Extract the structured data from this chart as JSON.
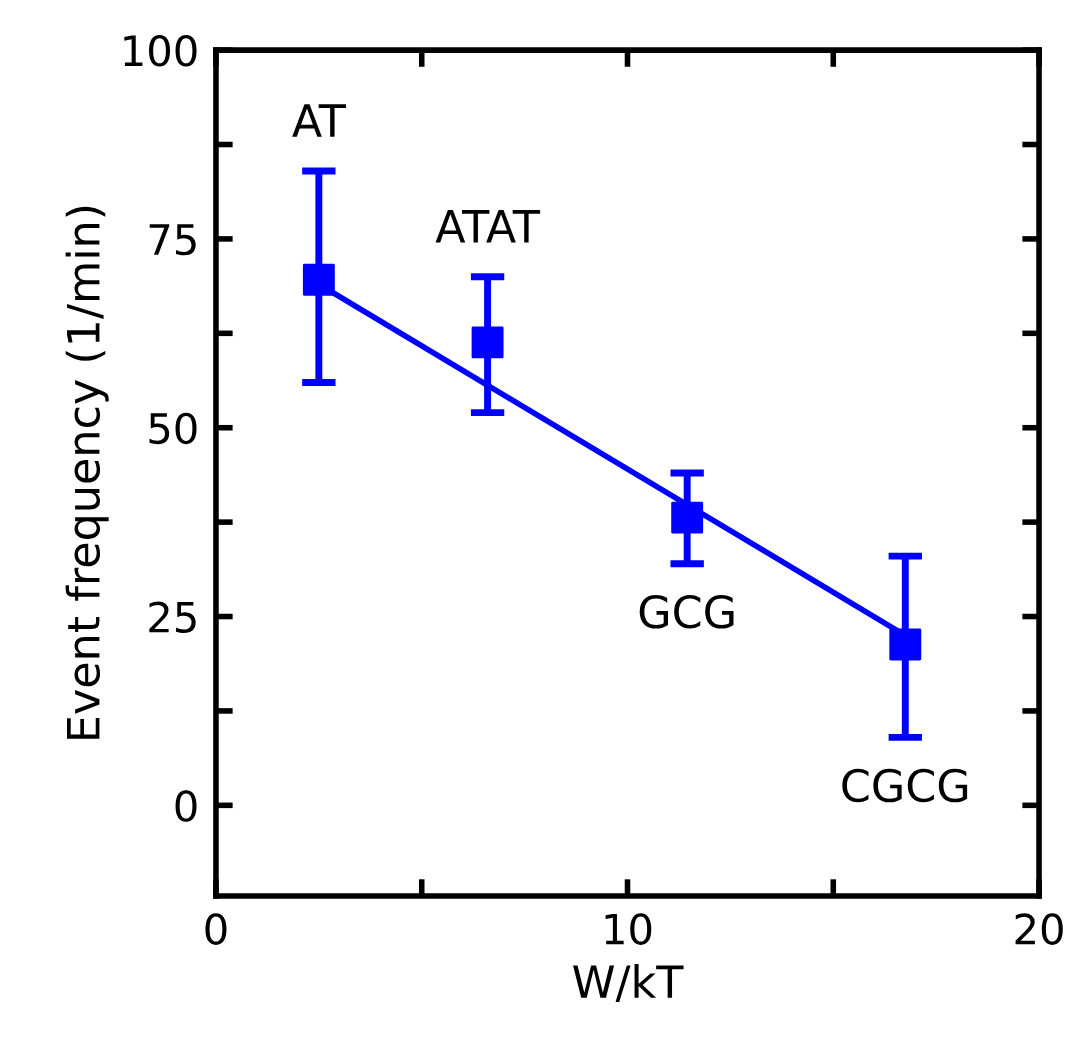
{
  "chart_data": {
    "type": "scatter",
    "xlabel": "W/kT",
    "ylabel": "Event frequency (1/min)",
    "xlim": [
      0,
      20
    ],
    "ylim": [
      -12,
      100
    ],
    "xticks": [
      0,
      {
        "value": 5,
        "label": null
      },
      10,
      {
        "value": 15,
        "label": null
      },
      20
    ],
    "yticks": [
      0,
      {
        "value": 12.5,
        "label": null
      },
      25,
      {
        "value": 37.5,
        "label": null
      },
      50,
      {
        "value": 62.5,
        "label": null
      },
      75,
      {
        "value": 87.5,
        "label": null
      },
      100
    ],
    "grid": false,
    "series": [
      {
        "color": "#0000ff",
        "marker": "square",
        "x": [
          2.5,
          6.6,
          11.45,
          16.75
        ],
        "values": [
          69.6,
          61.3,
          38.1,
          21.3
        ],
        "errors": [
          [
            56,
            84
          ],
          [
            52,
            70
          ],
          [
            32,
            44
          ],
          [
            9,
            33
          ]
        ]
      },
      {
        "type": "line",
        "color": "#0000ff",
        "x": [
          2.5,
          16.75
        ],
        "values": [
          69,
          22.5
        ],
        "line_style": "solid"
      }
    ],
    "annotations": [
      {
        "text": "AT",
        "x": 2.5,
        "y": 84
      },
      {
        "text": "ATAT",
        "x": 6.6,
        "y": 70
      },
      {
        "text": "GCG",
        "x": 11.45,
        "y": 32
      },
      {
        "text": "CGCG",
        "x": 16.75,
        "y": 9
      }
    ]
  }
}
